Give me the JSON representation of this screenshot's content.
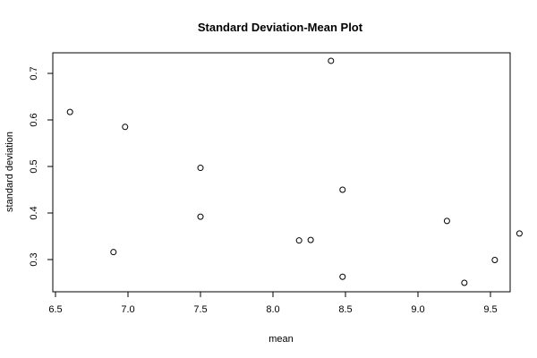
{
  "chart_data": {
    "type": "scatter",
    "title": "Standard Deviation-Mean Plot",
    "xlabel": "mean",
    "ylabel": "standard deviation",
    "xlim": [
      6.5,
      9.8
    ],
    "ylim": [
      0.227,
      0.745
    ],
    "xticks": [
      6.5,
      7.0,
      7.5,
      8.0,
      8.5,
      9.0,
      9.5
    ],
    "xtick_labels": [
      "6.5",
      "7.0",
      "7.5",
      "8.0",
      "8.5",
      "9.0",
      "9.5"
    ],
    "yticks": [
      0.3,
      0.4,
      0.5,
      0.6,
      0.7
    ],
    "ytick_labels": [
      "0.3",
      "0.4",
      "0.5",
      "0.6",
      "0.7"
    ],
    "grid": false,
    "marker": "open-circle",
    "points": [
      {
        "x": 6.6,
        "y": 0.617
      },
      {
        "x": 6.98,
        "y": 0.585
      },
      {
        "x": 7.5,
        "y": 0.497
      },
      {
        "x": 8.4,
        "y": 0.727
      },
      {
        "x": 8.48,
        "y": 0.45
      },
      {
        "x": 7.5,
        "y": 0.392
      },
      {
        "x": 6.9,
        "y": 0.316
      },
      {
        "x": 8.18,
        "y": 0.341
      },
      {
        "x": 8.26,
        "y": 0.342
      },
      {
        "x": 8.48,
        "y": 0.263
      },
      {
        "x": 9.2,
        "y": 0.383
      },
      {
        "x": 9.7,
        "y": 0.356
      },
      {
        "x": 9.53,
        "y": 0.299
      },
      {
        "x": 9.32,
        "y": 0.25
      }
    ]
  }
}
